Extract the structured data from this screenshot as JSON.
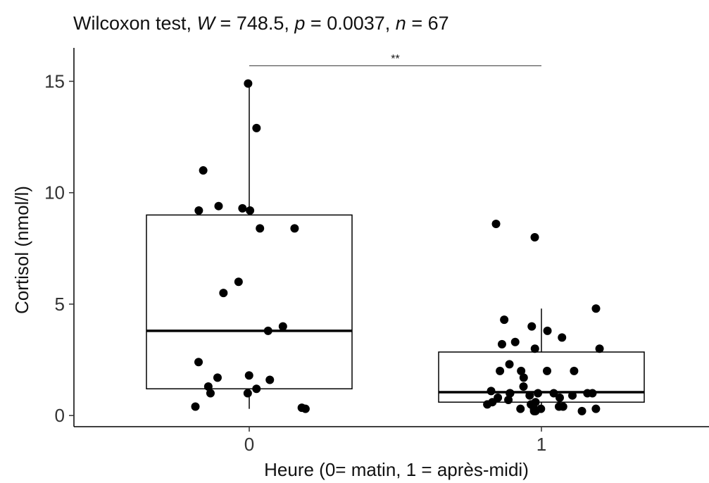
{
  "chart_data": {
    "type": "box",
    "title": {
      "prefix": "Wilcoxon test, ",
      "w_symbol": "W",
      "w_value": " = 748.5, ",
      "p_symbol": "p",
      "p_value": " = 0.0037, ",
      "n_symbol": "n",
      "n_value": " = 67"
    },
    "xlabel": "Heure (0= matin, 1 = après-midi)",
    "ylabel": "Cortisol (nmol/l)",
    "categories": [
      "0",
      "1"
    ],
    "ylim": [
      -0.5,
      16.5
    ],
    "yticks": [
      0,
      5,
      10,
      15
    ],
    "grid": false,
    "significance": {
      "label": "**",
      "from": "0",
      "to": "1",
      "y": 15.7
    },
    "boxes": [
      {
        "category": "0",
        "min": 0.3,
        "q1": 1.2,
        "median": 3.8,
        "q3": 9.0,
        "max": 14.9
      },
      {
        "category": "1",
        "min": 0.2,
        "q1": 0.6,
        "median": 1.05,
        "q3": 2.85,
        "max": 4.8
      }
    ],
    "points": [
      {
        "category": "0",
        "values": [
          14.9,
          12.9,
          11.0,
          9.4,
          9.3,
          9.2,
          9.2,
          8.4,
          8.4,
          6.0,
          5.5,
          4.0,
          3.8,
          2.4,
          1.8,
          1.7,
          1.6,
          1.3,
          1.2,
          1.0,
          1.0,
          0.4,
          0.35,
          0.3
        ]
      },
      {
        "category": "1",
        "values": [
          8.6,
          8.0,
          4.8,
          4.3,
          4.0,
          3.8,
          3.5,
          3.3,
          3.2,
          3.0,
          3.0,
          2.3,
          2.0,
          2.0,
          2.0,
          2.0,
          1.7,
          1.3,
          1.1,
          1.0,
          1.0,
          1.0,
          1.0,
          1.0,
          1.0,
          0.9,
          0.9,
          0.8,
          0.8,
          0.7,
          0.6,
          0.6,
          0.5,
          0.5,
          0.4,
          0.4,
          0.3,
          0.3,
          0.3,
          0.3,
          0.2,
          0.2,
          0.2
        ]
      }
    ]
  }
}
